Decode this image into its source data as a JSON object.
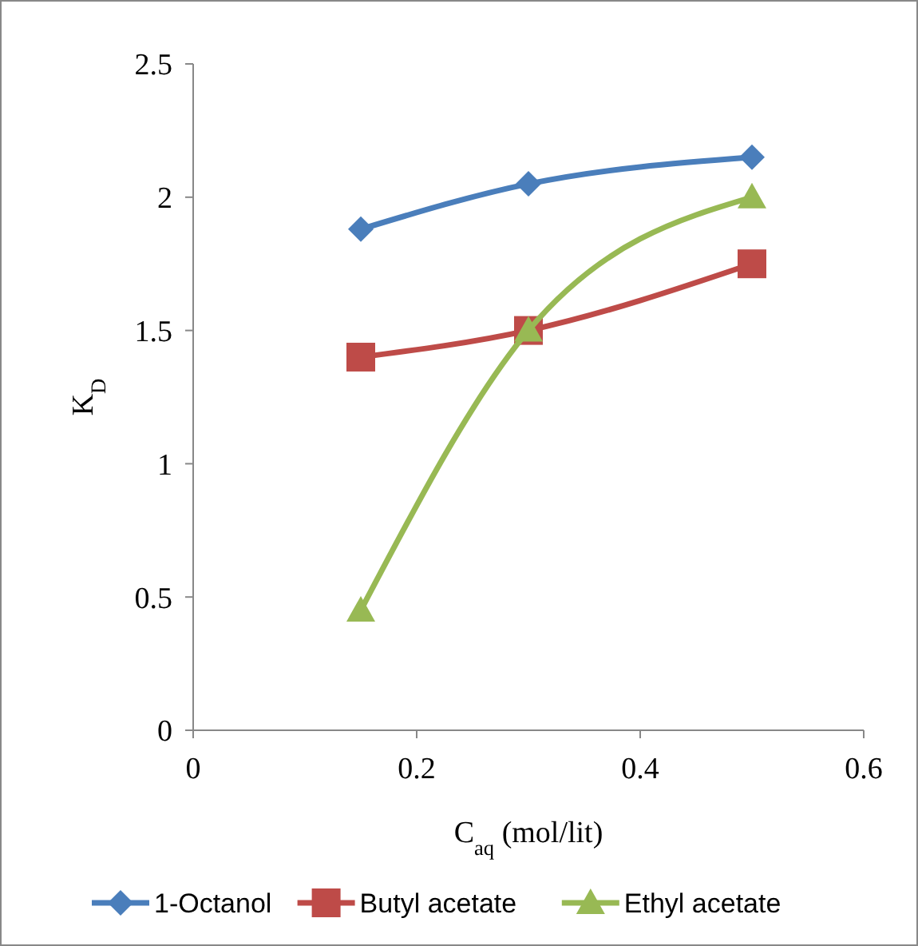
{
  "chart_data": {
    "type": "line",
    "xlabel": "C$_{aq}$  (mol/lit)",
    "ylabel": "K$_{D}$",
    "xlim": [
      0,
      0.6
    ],
    "ylim": [
      0,
      2.5
    ],
    "xticks": [
      0,
      0.2,
      0.4,
      0.6
    ],
    "yticks": [
      0,
      0.5,
      1,
      1.5,
      2,
      2.5
    ],
    "grid": false,
    "legend": "bottom",
    "x": [
      0.15,
      0.3,
      0.5
    ],
    "series": [
      {
        "name": "1-Octanol",
        "color": "#4a7ebb",
        "marker": "diamond",
        "values": [
          1.88,
          2.05,
          2.15
        ]
      },
      {
        "name": "Butyl acetate",
        "color": "#be4b48",
        "marker": "square",
        "values": [
          1.4,
          1.5,
          1.75
        ]
      },
      {
        "name": "Ethyl acetate",
        "color": "#98b954",
        "marker": "triangle",
        "values": [
          0.45,
          1.5,
          2.0
        ]
      }
    ]
  }
}
